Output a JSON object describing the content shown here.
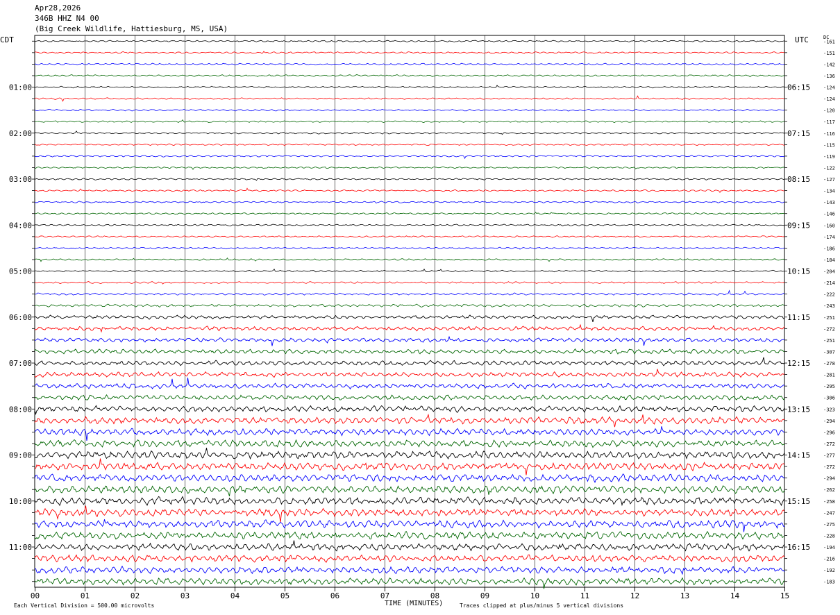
{
  "header": {
    "date": "Apr28,2026",
    "station": "346B HHZ N4 00",
    "location": "(Big Creek Wildlife, Hattiesburg, MS, USA)"
  },
  "left_tz": "CDT",
  "right_tz": "UTC",
  "dc_label": "DC",
  "xlabel": "TIME (MINUTES)",
  "footer": {
    "scale_note": "Each Vertical Division =  500.00 microvolts",
    "clip_note": "Traces clipped at plus/minus 5 vertical divisions"
  },
  "colors": {
    "black": "#000000",
    "red": "#ff0000",
    "blue": "#0000ff",
    "green": "#006600"
  },
  "chart_data": {
    "type": "line",
    "xlabel": "TIME (MINUTES)",
    "xlim": [
      0,
      15
    ],
    "x_ticks": [
      "00",
      "01",
      "02",
      "03",
      "04",
      "05",
      "06",
      "07",
      "08",
      "09",
      "10",
      "11",
      "12",
      "13",
      "14",
      "15"
    ],
    "left_hour_labels": [
      "01:00",
      "02:00",
      "03:00",
      "04:00",
      "05:00",
      "06:00",
      "07:00",
      "08:00",
      "09:00",
      "10:00",
      "11:00"
    ],
    "right_hour_labels": [
      "06:15",
      "07:15",
      "08:15",
      "09:15",
      "10:15",
      "11:15",
      "12:15",
      "13:15",
      "14:15",
      "15:15",
      "16:15"
    ],
    "trace_color_cycle": [
      "#000000",
      "#ff0000",
      "#0000ff",
      "#006600"
    ],
    "trace_count": 48,
    "dc_offsets": [
      -161,
      -151,
      -142,
      -136,
      -124,
      -124,
      -120,
      -117,
      -116,
      -115,
      -119,
      -122,
      -127,
      -134,
      -143,
      -146,
      -160,
      -174,
      -186,
      -184,
      -204,
      -214,
      -222,
      -243,
      -251,
      -272,
      -251,
      -307,
      -278,
      -281,
      -295,
      -306,
      -323,
      -294,
      -296,
      -272,
      -277,
      -272,
      -294,
      -262,
      -258,
      -247,
      -275,
      -228,
      -194,
      -216,
      -192,
      -183
    ],
    "relative_amplitude": [
      1,
      1,
      1,
      1,
      1,
      1,
      1,
      1,
      1,
      1,
      1,
      1,
      1,
      1,
      1,
      1,
      1,
      1,
      1,
      1,
      1,
      1.1,
      1.3,
      1.6,
      2.2,
      2.5,
      2.5,
      2.8,
      2.8,
      3,
      3,
      3,
      3.5,
      4,
      4,
      4.2,
      4.5,
      4.5,
      4.5,
      4.5,
      4.5,
      4.5,
      4.5,
      4.5,
      4.2,
      4.2,
      4,
      4
    ]
  }
}
